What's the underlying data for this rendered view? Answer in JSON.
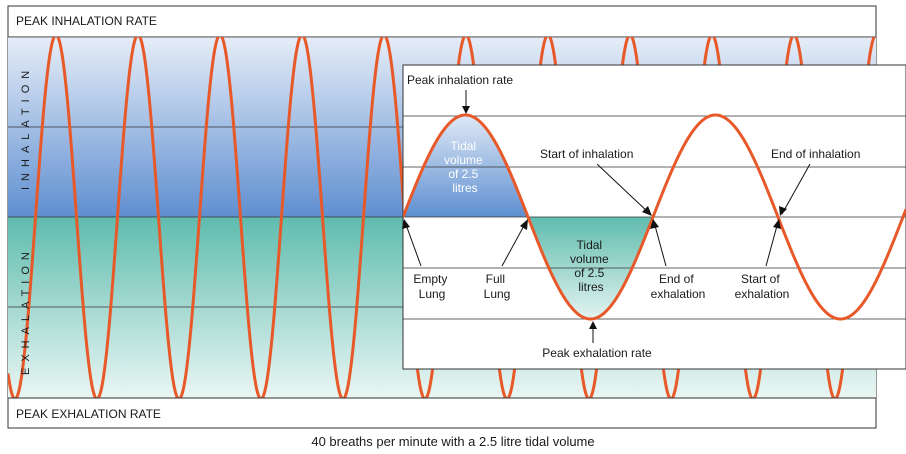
{
  "bands": {
    "top": "PEAK INHALATION RATE",
    "bottom": "PEAK EXHALATION RATE"
  },
  "side_labels": {
    "inhalation": "INHALATION",
    "exhalation": "EXHALATION"
  },
  "inset": {
    "peak_inhalation": "Peak inhalation rate",
    "peak_exhalation": "Peak exhalation rate",
    "start_of_inhalation": "Start of inhalation",
    "end_of_inhalation": "End of inhalation",
    "empty_lung": [
      "Empty",
      "Lung"
    ],
    "full_lung": [
      "Full",
      "Lung"
    ],
    "end_of_exhalation": [
      "End of",
      "exhalation"
    ],
    "start_of_exhalation": [
      "Start of",
      "exhalation"
    ],
    "tidal_inhalation": [
      "Tidal",
      "volume",
      "of 2.5",
      "litres"
    ],
    "tidal_exhalation": [
      "Tidal",
      "volume",
      "of 2.5",
      "litres"
    ]
  },
  "caption": "40 breaths per minute with a 2.5 litre tidal volume",
  "colors": {
    "wave": "#e8592a",
    "inhalation_fill": "#6a9ad6",
    "exhalation_fill": "#6dc1b3"
  }
}
